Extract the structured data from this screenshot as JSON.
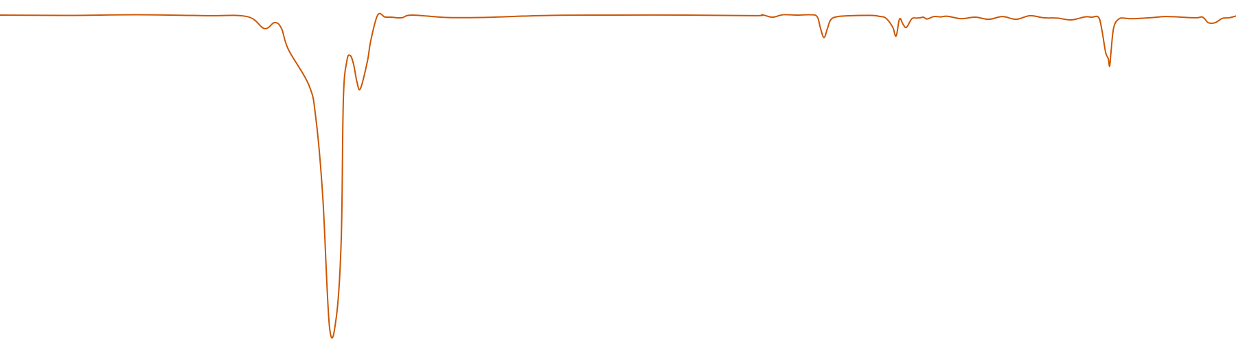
{
  "chart_data": {
    "type": "line",
    "title": "",
    "xlabel": "",
    "ylabel": "",
    "grid": false,
    "legend": "none",
    "xlim": [
      0,
      1800
    ],
    "ylim": [
      0,
      100
    ],
    "series": [
      {
        "color": "#cc5500",
        "x": [
          0,
          100,
          200,
          300,
          360,
          385,
          400,
          410,
          420,
          450,
          460,
          470,
          480,
          490,
          497,
          500,
          505,
          510,
          515,
          520,
          525,
          535,
          540,
          550,
          560,
          565,
          570,
          585,
          600,
          650,
          700,
          800,
          900,
          1000,
          1100,
          1110,
          1125,
          1140,
          1160,
          1180,
          1190,
          1195,
          1200,
          1205,
          1210,
          1220,
          1240,
          1270,
          1280,
          1290,
          1300,
          1305,
          1310,
          1315,
          1320,
          1328,
          1335,
          1340,
          1345,
          1350,
          1360,
          1370,
          1380,
          1400,
          1420,
          1440,
          1460,
          1480,
          1500,
          1520,
          1540,
          1560,
          1580,
          1590,
          1600,
          1605,
          1610,
          1614,
          1616,
          1618,
          1622,
          1630,
          1640,
          1650,
          1680,
          1700,
          1740,
          1750,
          1755,
          1760,
          1770,
          1780,
          1790,
          1800
        ],
        "values": [
          99.5,
          99.4,
          99.6,
          99.3,
          99,
          95,
          97,
          95,
          88,
          76,
          65,
          39,
          -5,
          -1,
          25,
          71,
          84,
          86,
          83,
          77,
          75,
          84,
          91,
          99.5,
          98.9,
          98.8,
          98.8,
          98.6,
          99.5,
          98.7,
          98.7,
          99.4,
          99.5,
          99.5,
          99.3,
          99.6,
          98.8,
          99.6,
          99.5,
          99.6,
          99,
          95,
          92,
          95,
          98,
          99,
          99.3,
          99.4,
          99.1,
          98.5,
          95.5,
          92.5,
          98.2,
          96.5,
          95.4,
          98.3,
          98.5,
          98.6,
          98.8,
          98.2,
          99,
          98.9,
          99.1,
          98.3,
          98.8,
          98.1,
          99,
          98.1,
          99.3,
          98.6,
          98.5,
          97.9,
          98.9,
          98.8,
          98.7,
          94.1,
          87.2,
          84.9,
          82.4,
          87.2,
          95.4,
          98.3,
          98.4,
          98.3,
          98.7,
          99,
          98.6,
          98.9,
          98.1,
          96.9,
          97,
          98.4,
          98.6,
          99.2
        ]
      }
    ]
  }
}
